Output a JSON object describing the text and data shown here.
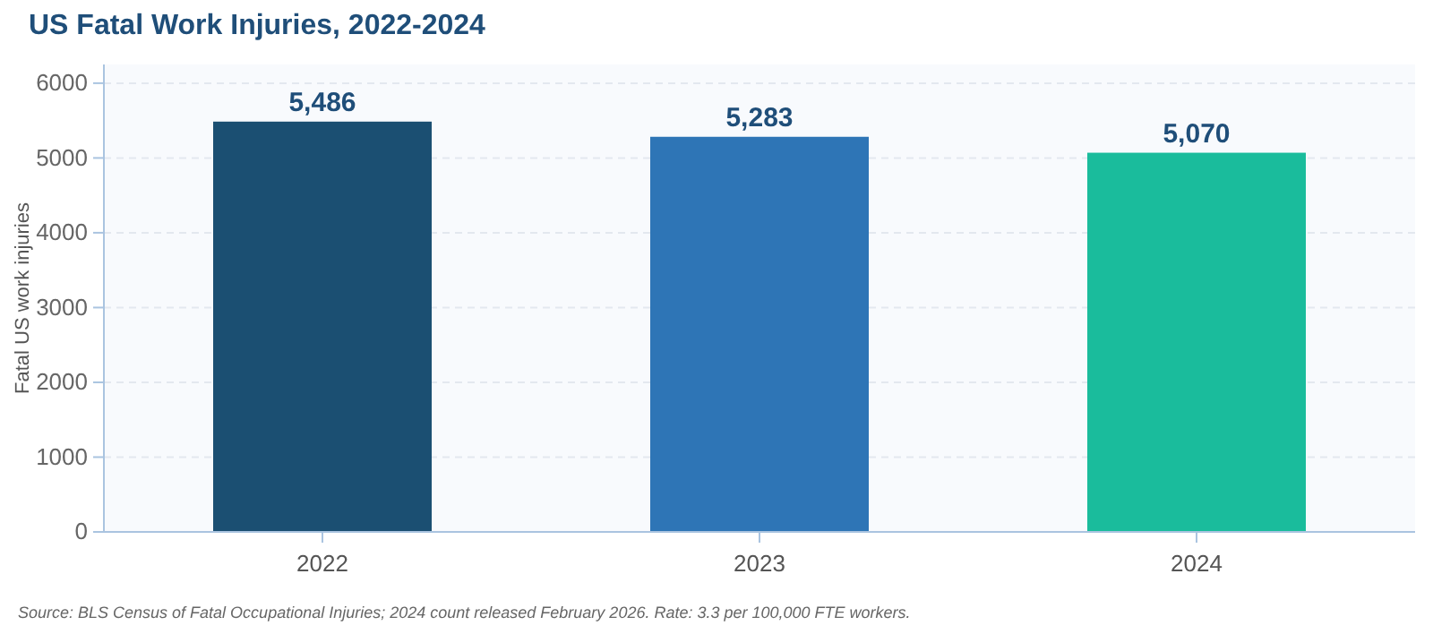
{
  "chart_data": {
    "type": "bar",
    "title": "US Fatal Work Injuries, 2022-2024",
    "ylabel": "Fatal US work injuries",
    "categories": [
      "2022",
      "2023",
      "2024"
    ],
    "values": [
      5486,
      5283,
      5070
    ],
    "value_labels": [
      "5,486",
      "5,283",
      "5,070"
    ],
    "colors": [
      "#1b4f72",
      "#2e75b6",
      "#1abc9c"
    ],
    "ylim": [
      0,
      6250
    ],
    "yticks": [
      0,
      1000,
      2000,
      3000,
      4000,
      5000,
      6000
    ],
    "grid": "y",
    "annotations": [
      "Source: BLS Census of Fatal Occupational Injuries; 2024 count released February 2026. Rate: 3.3 per 100,000 FTE workers."
    ]
  }
}
